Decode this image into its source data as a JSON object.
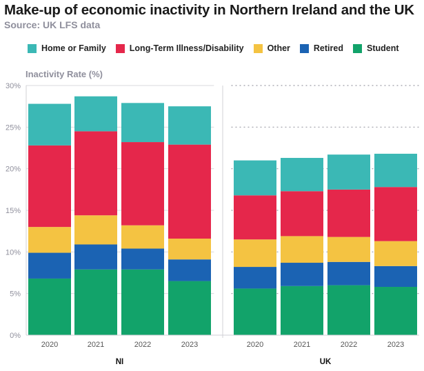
{
  "title": "Make-up of economic inactivity in Northern Ireland and the UK",
  "subtitle": "Source: UK LFS data",
  "legend": [
    {
      "label": "Home or Family",
      "color": "#3bb8b5"
    },
    {
      "label": "Long-Term Illness/Disability",
      "color": "#e5274b"
    },
    {
      "label": "Other",
      "color": "#f4c342"
    },
    {
      "label": "Retired",
      "color": "#1b63b3"
    },
    {
      "label": "Student",
      "color": "#12a36a"
    }
  ],
  "chart_data": {
    "type": "bar",
    "stacked": true,
    "ylabel": "Inactivity Rate (%)",
    "ylim": [
      0,
      30
    ],
    "yticks": [
      "0%",
      "5%",
      "10%",
      "15%",
      "20%",
      "25%",
      "30%"
    ],
    "categories": [
      "2020",
      "2021",
      "2022",
      "2023"
    ],
    "panels": [
      {
        "label": "NI",
        "series": [
          {
            "name": "Student",
            "values": [
              6.8,
              7.9,
              7.9,
              6.5
            ]
          },
          {
            "name": "Retired",
            "values": [
              3.1,
              3.0,
              2.5,
              2.6
            ]
          },
          {
            "name": "Other",
            "values": [
              3.1,
              3.5,
              2.8,
              2.5
            ]
          },
          {
            "name": "Long-Term Illness/Disability",
            "values": [
              9.8,
              10.1,
              10.0,
              11.3
            ]
          },
          {
            "name": "Home or Family",
            "values": [
              5.0,
              4.2,
              4.7,
              4.6
            ]
          }
        ]
      },
      {
        "label": "UK",
        "series": [
          {
            "name": "Student",
            "values": [
              5.6,
              5.9,
              6.0,
              5.8
            ]
          },
          {
            "name": "Retired",
            "values": [
              2.6,
              2.8,
              2.8,
              2.5
            ]
          },
          {
            "name": "Other",
            "values": [
              3.3,
              3.2,
              3.0,
              3.0
            ]
          },
          {
            "name": "Long-Term Illness/Disability",
            "values": [
              5.3,
              5.4,
              5.7,
              6.5
            ]
          },
          {
            "name": "Home or Family",
            "values": [
              4.2,
              4.0,
              4.2,
              4.0
            ]
          }
        ]
      }
    ]
  }
}
